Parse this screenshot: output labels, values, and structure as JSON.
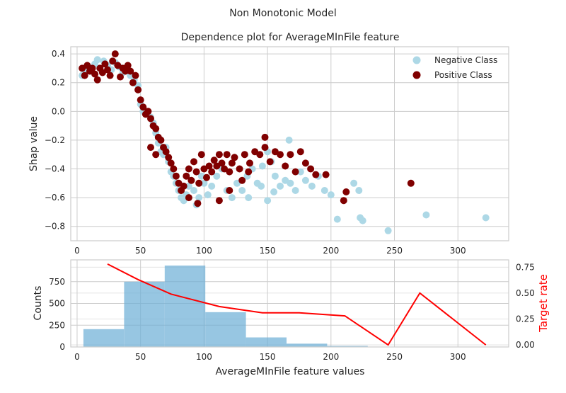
{
  "figure": {
    "suptitle": "Non Monotonic Model"
  },
  "colors": {
    "negative": "#add8e6",
    "positive": "#800000",
    "histogram": "#6baed6",
    "target_rate": "#ff0000",
    "grid": "#cccccc",
    "frame": "#cccccc",
    "text": "#262626"
  },
  "chart_data": [
    {
      "type": "scatter",
      "title": "Dependence plot for AverageMInFile feature",
      "xlabel": "",
      "ylabel": "Shap value",
      "xlim": [
        -5,
        340
      ],
      "ylim": [
        -0.9,
        0.45
      ],
      "x_ticks": [
        0,
        50,
        100,
        150,
        200,
        250,
        300
      ],
      "y_ticks": [
        0.4,
        0.2,
        0.0,
        -0.2,
        -0.4,
        -0.6,
        -0.8
      ],
      "y_tick_labels": [
        "0.4",
        "0.2",
        "0.0",
        "−0.2",
        "−0.4",
        "−0.6",
        "−0.8"
      ],
      "grid": true,
      "legend": "top-right",
      "series": [
        {
          "name": "Negative Class",
          "points": [
            [
              4,
              0.25
            ],
            [
              6,
              0.29
            ],
            [
              9,
              0.31
            ],
            [
              11,
              0.28
            ],
            [
              14,
              0.33
            ],
            [
              16,
              0.36
            ],
            [
              18,
              0.3
            ],
            [
              21,
              0.35
            ],
            [
              24,
              0.32
            ],
            [
              27,
              0.29
            ],
            [
              30,
              0.34
            ],
            [
              33,
              0.31
            ],
            [
              36,
              0.27
            ],
            [
              39,
              0.3
            ],
            [
              42,
              0.25
            ],
            [
              45,
              0.22
            ],
            [
              48,
              0.18
            ],
            [
              50,
              0.05
            ],
            [
              52,
              0.0
            ],
            [
              55,
              -0.02
            ],
            [
              58,
              -0.04
            ],
            [
              60,
              -0.08
            ],
            [
              62,
              -0.15
            ],
            [
              64,
              -0.22
            ],
            [
              66,
              -0.28
            ],
            [
              68,
              -0.3
            ],
            [
              70,
              -0.25
            ],
            [
              72,
              -0.35
            ],
            [
              74,
              -0.42
            ],
            [
              76,
              -0.45
            ],
            [
              78,
              -0.5
            ],
            [
              80,
              -0.55
            ],
            [
              82,
              -0.6
            ],
            [
              84,
              -0.62
            ],
            [
              86,
              -0.58
            ],
            [
              88,
              -0.52
            ],
            [
              90,
              -0.48
            ],
            [
              92,
              -0.55
            ],
            [
              94,
              -0.65
            ],
            [
              96,
              -0.6
            ],
            [
              98,
              -0.45
            ],
            [
              100,
              -0.5
            ],
            [
              103,
              -0.58
            ],
            [
              106,
              -0.52
            ],
            [
              110,
              -0.45
            ],
            [
              114,
              -0.4
            ],
            [
              118,
              -0.55
            ],
            [
              122,
              -0.6
            ],
            [
              126,
              -0.5
            ],
            [
              130,
              -0.55
            ],
            [
              134,
              -0.45
            ],
            [
              138,
              -0.4
            ],
            [
              142,
              -0.5
            ],
            [
              146,
              -0.38
            ],
            [
              150,
              -0.28
            ],
            [
              153,
              -0.35
            ],
            [
              156,
              -0.45
            ],
            [
              160,
              -0.52
            ],
            [
              164,
              -0.48
            ],
            [
              168,
              -0.5
            ],
            [
              172,
              -0.55
            ],
            [
              176,
              -0.42
            ],
            [
              180,
              -0.48
            ],
            [
              185,
              -0.52
            ],
            [
              190,
              -0.45
            ],
            [
              195,
              -0.55
            ],
            [
              200,
              -0.58
            ],
            [
              150,
              -0.62
            ],
            [
              155,
              -0.56
            ],
            [
              167,
              -0.2
            ],
            [
              135,
              -0.6
            ],
            [
              145,
              -0.52
            ],
            [
              205,
              -0.75
            ],
            [
              218,
              -0.5
            ],
            [
              222,
              -0.55
            ],
            [
              223,
              -0.74
            ],
            [
              225,
              -0.76
            ],
            [
              245,
              -0.83
            ],
            [
              275,
              -0.72
            ],
            [
              322,
              -0.74
            ]
          ]
        },
        {
          "name": "Positive Class",
          "points": [
            [
              4,
              0.3
            ],
            [
              6,
              0.25
            ],
            [
              8,
              0.32
            ],
            [
              10,
              0.28
            ],
            [
              12,
              0.3
            ],
            [
              14,
              0.26
            ],
            [
              16,
              0.22
            ],
            [
              18,
              0.3
            ],
            [
              20,
              0.27
            ],
            [
              22,
              0.33
            ],
            [
              24,
              0.29
            ],
            [
              26,
              0.25
            ],
            [
              28,
              0.35
            ],
            [
              30,
              0.4
            ],
            [
              32,
              0.32
            ],
            [
              34,
              0.24
            ],
            [
              36,
              0.3
            ],
            [
              38,
              0.28
            ],
            [
              40,
              0.32
            ],
            [
              42,
              0.28
            ],
            [
              44,
              0.2
            ],
            [
              46,
              0.25
            ],
            [
              48,
              0.15
            ],
            [
              50,
              0.08
            ],
            [
              52,
              0.03
            ],
            [
              54,
              -0.02
            ],
            [
              56,
              0.0
            ],
            [
              58,
              -0.05
            ],
            [
              60,
              -0.1
            ],
            [
              62,
              -0.12
            ],
            [
              64,
              -0.18
            ],
            [
              66,
              -0.2
            ],
            [
              68,
              -0.25
            ],
            [
              70,
              -0.28
            ],
            [
              72,
              -0.32
            ],
            [
              74,
              -0.36
            ],
            [
              76,
              -0.4
            ],
            [
              78,
              -0.45
            ],
            [
              80,
              -0.5
            ],
            [
              82,
              -0.55
            ],
            [
              84,
              -0.52
            ],
            [
              86,
              -0.45
            ],
            [
              88,
              -0.4
            ],
            [
              90,
              -0.48
            ],
            [
              92,
              -0.35
            ],
            [
              94,
              -0.42
            ],
            [
              96,
              -0.5
            ],
            [
              98,
              -0.3
            ],
            [
              100,
              -0.4
            ],
            [
              102,
              -0.46
            ],
            [
              104,
              -0.38
            ],
            [
              106,
              -0.42
            ],
            [
              108,
              -0.34
            ],
            [
              110,
              -0.38
            ],
            [
              112,
              -0.3
            ],
            [
              114,
              -0.36
            ],
            [
              116,
              -0.4
            ],
            [
              118,
              -0.3
            ],
            [
              120,
              -0.42
            ],
            [
              122,
              -0.36
            ],
            [
              124,
              -0.32
            ],
            [
              128,
              -0.4
            ],
            [
              132,
              -0.3
            ],
            [
              136,
              -0.36
            ],
            [
              140,
              -0.28
            ],
            [
              144,
              -0.3
            ],
            [
              148,
              -0.25
            ],
            [
              152,
              -0.35
            ],
            [
              156,
              -0.28
            ],
            [
              160,
              -0.3
            ],
            [
              164,
              -0.38
            ],
            [
              168,
              -0.3
            ],
            [
              172,
              -0.42
            ],
            [
              176,
              -0.28
            ],
            [
              180,
              -0.36
            ],
            [
              184,
              -0.4
            ],
            [
              188,
              -0.44
            ],
            [
              196,
              -0.44
            ],
            [
              212,
              -0.56
            ],
            [
              210,
              -0.62
            ],
            [
              263,
              -0.5
            ],
            [
              88,
              -0.6
            ],
            [
              95,
              -0.64
            ],
            [
              112,
              -0.62
            ],
            [
              120,
              -0.55
            ],
            [
              130,
              -0.48
            ],
            [
              148,
              -0.18
            ],
            [
              135,
              -0.42
            ],
            [
              62,
              -0.3
            ],
            [
              58,
              -0.25
            ]
          ]
        }
      ]
    },
    {
      "type": "bar",
      "title": "",
      "xlabel": "AverageMInFile feature values",
      "ylabel": "Counts",
      "y2label": "Target rate",
      "xlim": [
        -5,
        340
      ],
      "ylim": [
        0,
        1000
      ],
      "y2lim": [
        -0.02,
        0.82
      ],
      "x_ticks": [
        0,
        50,
        100,
        150,
        200,
        250,
        300
      ],
      "y_ticks": [
        0,
        250,
        500,
        750
      ],
      "y2_ticks": [
        0.0,
        0.25,
        0.5,
        0.75
      ],
      "y2_tick_labels": [
        "0.00",
        "0.25",
        "0.50",
        "0.75"
      ],
      "grid": true,
      "bins": [
        {
          "x0": 5,
          "x1": 37,
          "count": 205
        },
        {
          "x0": 37,
          "x1": 69,
          "count": 750
        },
        {
          "x0": 69,
          "x1": 101,
          "count": 935
        },
        {
          "x0": 101,
          "x1": 133,
          "count": 400
        },
        {
          "x0": 133,
          "x1": 165,
          "count": 110
        },
        {
          "x0": 165,
          "x1": 197,
          "count": 38
        },
        {
          "x0": 197,
          "x1": 229,
          "count": 12
        },
        {
          "x0": 229,
          "x1": 261,
          "count": 3
        },
        {
          "x0": 261,
          "x1": 293,
          "count": 2
        },
        {
          "x0": 293,
          "x1": 325,
          "count": 2
        }
      ],
      "target_rate": {
        "x": [
          24,
          48,
          74,
          112,
          146,
          175,
          211,
          245,
          270,
          322
        ],
        "y": [
          0.78,
          0.63,
          0.49,
          0.37,
          0.31,
          0.31,
          0.28,
          0.0,
          0.5,
          0.0
        ]
      }
    }
  ]
}
